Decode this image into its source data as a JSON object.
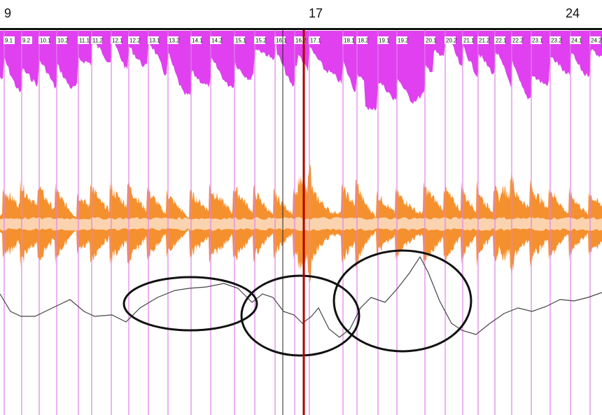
{
  "ruler": {
    "bar_numbers": [
      {
        "label": "9",
        "measure": 9
      },
      {
        "label": "17",
        "measure": 17
      },
      {
        "label": "24",
        "measure": 24
      }
    ]
  },
  "markers": [
    "9.1",
    "9.2",
    "10.1",
    "10.2",
    "11.1",
    "11.2",
    "12.1",
    "12.2",
    "13.1",
    "13.2",
    "14.1",
    "14.2",
    "15.1",
    "15.2",
    "16.1",
    "16.2",
    "17.1",
    "18.1",
    "18.2",
    "19.1",
    "19.2",
    "20.1",
    "20.2",
    "21.1",
    "21.2",
    "22.1",
    "22.2",
    "23.1",
    "23.2",
    "24.1",
    "24.2"
  ],
  "colors": {
    "spectral": "#e040f0",
    "waveform": "#f5902e",
    "waveform_fill": "#fbd3ae",
    "marker_line": "#e080ea",
    "playhead": "#b00000",
    "tempo_curve": "#444444",
    "highlight_ellipse": "#111111",
    "ruler": "#111111"
  },
  "tracks": [
    "spectral-envelope",
    "audio-waveform",
    "tempo-curve"
  ],
  "annotations": {
    "highlight_ellipses": 3
  }
}
